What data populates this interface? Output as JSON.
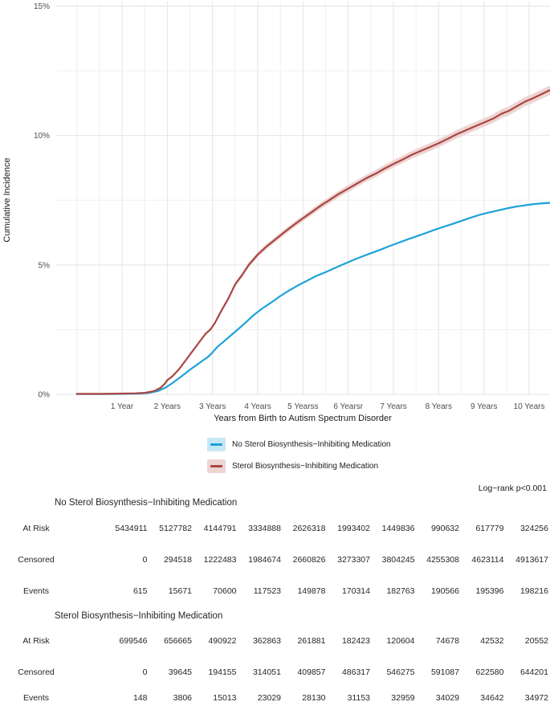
{
  "chart": {
    "y_axis_title": "Cumulative Incidence",
    "x_axis_title": "Years from Birth to Autism Spectrum Disorder"
  },
  "chart_data": {
    "type": "line",
    "title": "",
    "xlabel": "Years from Birth to Autism Spectrum Disorder",
    "ylabel": "Cumulative Incidence",
    "xlim": [
      -0.45,
      10.46
    ],
    "ylim": [
      0,
      15.4
    ],
    "grid": true,
    "legend_position": "bottom",
    "x_ticks": [
      {
        "value": 1,
        "label": "1 Year"
      },
      {
        "value": 2,
        "label": "2 Years"
      },
      {
        "value": 3,
        "label": "3 Years"
      },
      {
        "value": 4,
        "label": "4 Years"
      },
      {
        "value": 5,
        "label": "5 Yearss"
      },
      {
        "value": 6,
        "label": "6 Yearsr"
      },
      {
        "value": 7,
        "label": "7 Years"
      },
      {
        "value": 8,
        "label": "8 Years"
      },
      {
        "value": 9,
        "label": "9 Years"
      },
      {
        "value": 10,
        "label": "10 Years"
      }
    ],
    "y_ticks": [
      {
        "value": 0,
        "label": "0%"
      },
      {
        "value": 5,
        "label": "5%"
      },
      {
        "value": 10,
        "label": "10%"
      },
      {
        "value": 15,
        "label": "15%"
      }
    ],
    "series": [
      {
        "name": "No Sterol Biosynthesis−Inhibiting Medication",
        "color": "#1ea2d9",
        "band_color": "#c6e8f6",
        "band_halfwidth_base": 0.008,
        "band_halfwidth_scale": 0.004,
        "x": [
          0.0,
          0.5,
          1.0,
          1.4,
          1.6,
          1.8,
          1.95,
          2.1,
          2.3,
          2.5,
          2.7,
          2.9,
          3.0,
          3.1,
          3.3,
          3.5,
          3.7,
          3.9,
          4.1,
          4.3,
          4.5,
          4.7,
          4.9,
          5.1,
          5.3,
          5.5,
          5.7,
          5.9,
          6.1,
          6.3,
          6.5,
          6.7,
          6.9,
          7.1,
          7.3,
          7.5,
          7.7,
          7.9,
          8.1,
          8.3,
          8.5,
          8.7,
          8.9,
          9.1,
          9.3,
          9.5,
          9.7,
          9.9,
          10.1,
          10.3,
          10.46
        ],
        "y": [
          0.01,
          0.01,
          0.02,
          0.03,
          0.06,
          0.13,
          0.25,
          0.42,
          0.68,
          0.95,
          1.2,
          1.45,
          1.62,
          1.82,
          2.12,
          2.42,
          2.72,
          3.05,
          3.32,
          3.55,
          3.8,
          4.02,
          4.22,
          4.4,
          4.58,
          4.72,
          4.88,
          5.03,
          5.18,
          5.32,
          5.45,
          5.58,
          5.72,
          5.85,
          5.98,
          6.1,
          6.22,
          6.35,
          6.47,
          6.58,
          6.7,
          6.82,
          6.93,
          7.02,
          7.1,
          7.18,
          7.25,
          7.3,
          7.35,
          7.38,
          7.4
        ]
      },
      {
        "name": "Sterol Biosynthesis−Inhibiting Medication",
        "color": "#aa4642",
        "band_color": "#edd5d4",
        "band_halfwidth_base": 0.02,
        "band_halfwidth_scale": 0.014,
        "x": [
          0.0,
          0.5,
          1.0,
          1.3,
          1.5,
          1.7,
          1.85,
          1.95,
          2.0,
          2.1,
          2.25,
          2.4,
          2.55,
          2.7,
          2.85,
          2.95,
          3.05,
          3.2,
          3.35,
          3.5,
          3.65,
          3.8,
          4.0,
          4.2,
          4.4,
          4.6,
          4.8,
          5.0,
          5.2,
          5.4,
          5.6,
          5.8,
          6.0,
          6.2,
          6.4,
          6.6,
          6.8,
          7.0,
          7.2,
          7.4,
          7.6,
          7.8,
          8.0,
          8.2,
          8.4,
          8.6,
          8.8,
          9.0,
          9.2,
          9.4,
          9.55,
          9.7,
          9.9,
          10.1,
          10.3,
          10.46
        ],
        "y": [
          0.02,
          0.02,
          0.03,
          0.04,
          0.06,
          0.12,
          0.25,
          0.42,
          0.55,
          0.68,
          0.95,
          1.3,
          1.65,
          2.0,
          2.35,
          2.5,
          2.75,
          3.25,
          3.7,
          4.25,
          4.6,
          5.0,
          5.4,
          5.72,
          6.0,
          6.28,
          6.55,
          6.8,
          7.05,
          7.3,
          7.52,
          7.75,
          7.95,
          8.15,
          8.35,
          8.52,
          8.72,
          8.9,
          9.07,
          9.25,
          9.4,
          9.55,
          9.7,
          9.87,
          10.05,
          10.2,
          10.35,
          10.5,
          10.65,
          10.85,
          10.95,
          11.1,
          11.3,
          11.45,
          11.62,
          11.75
        ]
      }
    ]
  },
  "legend": {
    "items": [
      {
        "label": "No Sterol Biosynthesis−Inhibiting Medication"
      },
      {
        "label": "Sterol Biosynthesis−Inhibiting Medication"
      }
    ]
  },
  "annotations": {
    "log_rank": "Log−rank p<0.001"
  },
  "risk_table": {
    "groups": [
      {
        "title": "No Sterol Biosynthesis−Inhibiting Medication",
        "rows": [
          {
            "label": "At Risk",
            "values": [
              "5434911",
              "5127782",
              "4144791",
              "3334888",
              "2626318",
              "1993402",
              "1449836",
              "990632",
              "617779",
              "324256"
            ]
          },
          {
            "label": "Censored",
            "values": [
              "0",
              "294518",
              "1222483",
              "1984674",
              "2660826",
              "3273307",
              "3804245",
              "4255308",
              "4623114",
              "4913617"
            ]
          },
          {
            "label": "Events",
            "values": [
              "615",
              "15671",
              "70600",
              "117523",
              "149878",
              "170314",
              "182763",
              "190566",
              "195396",
              "198216"
            ]
          }
        ]
      },
      {
        "title": "Sterol Biosynthesis−Inhibiting Medication",
        "rows": [
          {
            "label": "At Risk",
            "values": [
              "699546",
              "656665",
              "490922",
              "362863",
              "261881",
              "182423",
              "120604",
              "74678",
              "42532",
              "20552"
            ]
          },
          {
            "label": "Censored",
            "values": [
              "0",
              "39645",
              "194155",
              "314051",
              "409857",
              "486317",
              "546275",
              "591087",
              "622580",
              "644201"
            ]
          },
          {
            "label": "Events",
            "values": [
              "148",
              "3806",
              "15013",
              "23029",
              "28130",
              "31153",
              "32959",
              "34029",
              "34642",
              "34972"
            ]
          }
        ]
      }
    ]
  },
  "colors": {
    "grid_major": "#e3e3e3",
    "grid_minor": "#f0f0f0",
    "tick_label": "#4d4d4d",
    "text": "#1a1a1a"
  }
}
